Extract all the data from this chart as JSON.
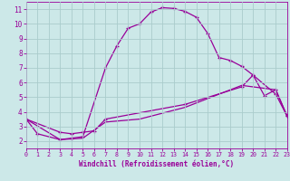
{
  "xlabel": "Windchill (Refroidissement éolien,°C)",
  "xlim": [
    0,
    23
  ],
  "ylim": [
    1.5,
    11.5
  ],
  "xticks": [
    0,
    1,
    2,
    3,
    4,
    5,
    6,
    7,
    8,
    9,
    10,
    11,
    12,
    13,
    14,
    15,
    16,
    17,
    18,
    19,
    20,
    21,
    22,
    23
  ],
  "yticks": [
    2,
    3,
    4,
    5,
    6,
    7,
    8,
    9,
    10,
    11
  ],
  "bg_color": "#cce8e8",
  "line_color": "#990099",
  "grid_color": "#aacccc",
  "line1_x": [
    0,
    1,
    3,
    4,
    5,
    7,
    8,
    9,
    10,
    11,
    12,
    13,
    14,
    15,
    16,
    17,
    18,
    19,
    20,
    21,
    22,
    23
  ],
  "line1_y": [
    3.5,
    2.5,
    2.1,
    2.2,
    2.3,
    7.0,
    8.5,
    9.7,
    10.0,
    10.8,
    11.1,
    11.05,
    10.85,
    10.45,
    9.35,
    7.7,
    7.5,
    7.1,
    6.5,
    5.1,
    5.5,
    3.7
  ],
  "line2_x": [
    0,
    3,
    4,
    5,
    6,
    7,
    14,
    19,
    20,
    22,
    23
  ],
  "line2_y": [
    3.5,
    2.6,
    2.5,
    2.6,
    2.7,
    3.5,
    4.5,
    5.7,
    6.5,
    5.2,
    3.7
  ],
  "line3_x": [
    0,
    3,
    5,
    7,
    10,
    14,
    19,
    22,
    23
  ],
  "line3_y": [
    3.5,
    2.1,
    2.2,
    3.3,
    3.5,
    4.3,
    5.8,
    5.5,
    3.7
  ]
}
